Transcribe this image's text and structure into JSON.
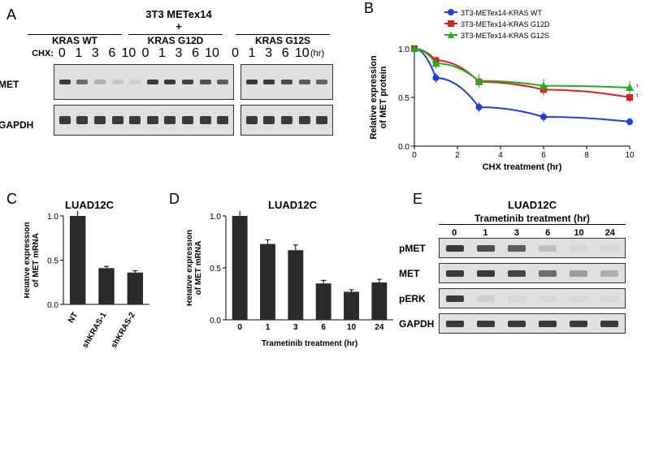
{
  "labels": {
    "A": "A",
    "B": "B",
    "C": "C",
    "D": "D",
    "E": "E",
    "topTitle": "3T3 METex14",
    "plus": "+",
    "krasWT": "KRAS WT",
    "krasG12D": "KRAS G12D",
    "krasG12S": "KRAS G12S",
    "chx": "CHX:",
    "hr": "(hr)",
    "met": "MET",
    "gapdh": "GAPDH",
    "luad": "LUAD12C",
    "tramTitle": "Trametinib treatment (hr)",
    "pmet": "pMET",
    "perk": "pERK"
  },
  "panelA": {
    "times": [
      "0",
      "1",
      "3",
      "6",
      "10"
    ],
    "groups": [
      "KRAS WT",
      "KRAS G12D",
      "KRAS G12S"
    ]
  },
  "panelB": {
    "type": "line",
    "xlabel": "CHX treatment (hr)",
    "ylabel": "Relative expression\nof MET protein",
    "legend": [
      "3T3-METex14-KRAS WT",
      "3T3-METex14-KRAS G12D",
      "3T3-METex14-KRAS G12S"
    ],
    "colors": [
      "#1f3fe0",
      "#e01f1f",
      "#1fb01f"
    ],
    "markers": [
      "circle",
      "square",
      "triangle"
    ],
    "x": [
      0,
      1,
      3,
      6,
      10
    ],
    "series": {
      "wt": [
        1.0,
        0.7,
        0.4,
        0.3,
        0.25
      ],
      "g12d": [
        1.0,
        0.88,
        0.66,
        0.58,
        0.5
      ],
      "g12s": [
        1.0,
        0.85,
        0.67,
        0.62,
        0.6
      ]
    },
    "err": {
      "wt": [
        0,
        0.05,
        0.05,
        0.05,
        0.04
      ],
      "g12d": [
        0,
        0.04,
        0.06,
        0.06,
        0.05
      ],
      "g12s": [
        0,
        0.05,
        0.07,
        0.07,
        0.07
      ]
    },
    "xlim": [
      0,
      10
    ],
    "ylim": [
      0,
      1
    ],
    "xtick_step": 2,
    "ytick_step": 0.5,
    "background_color": "#ffffff",
    "axis_color": "#000000",
    "line_width": 2,
    "marker_size": 5,
    "title_fontsize": 0,
    "label_fontsize": 11
  },
  "panelC": {
    "type": "bar",
    "title": "LUAD12C",
    "ylabel": "Relative expression\nof MET mRNA",
    "categories": [
      "NT",
      "shKRAS-1",
      "shKRAS-2"
    ],
    "values": [
      1.0,
      0.41,
      0.36
    ],
    "err": [
      0.08,
      0.02,
      0.02
    ],
    "bar_color": "#2a2a2a",
    "ylim": [
      0,
      1
    ],
    "ytick_step": 0.5,
    "background_color": "#ffffff",
    "axis_color": "#000000",
    "bar_width": 0.55,
    "label_fontsize": 10
  },
  "panelD": {
    "type": "bar",
    "title": "LUAD12C",
    "xlabel": "Trametinib treatment (hr)",
    "ylabel": "Relative expression\nof MET mRNA",
    "categories": [
      "0",
      "1",
      "3",
      "6",
      "10",
      "24"
    ],
    "values": [
      1.0,
      0.73,
      0.67,
      0.35,
      0.27,
      0.36
    ],
    "err": [
      0.07,
      0.04,
      0.05,
      0.03,
      0.02,
      0.03
    ],
    "bar_color": "#2a2a2a",
    "ylim": [
      0,
      1
    ],
    "ytick_step": 0.5,
    "background_color": "#ffffff",
    "axis_color": "#000000",
    "bar_width": 0.55,
    "label_fontsize": 10
  },
  "panelE": {
    "title": "LUAD12C",
    "subtitle": "Trametinib treatment (hr)",
    "times": [
      "0",
      "1",
      "3",
      "6",
      "10",
      "24"
    ],
    "rows": [
      "pMET",
      "MET",
      "pERK",
      "GAPDH"
    ],
    "intensities": {
      "pMET": [
        1.0,
        0.9,
        0.8,
        0.2,
        0.05,
        0.05
      ],
      "MET": [
        1.0,
        1.0,
        0.95,
        0.7,
        0.4,
        0.3
      ],
      "pERK": [
        1.0,
        0.1,
        0.05,
        0.05,
        0.05,
        0.05
      ],
      "GAPDH": [
        1.0,
        1.0,
        1.0,
        1.0,
        1.0,
        1.0
      ]
    },
    "band_color": "#3a3a3a",
    "box_background": "#e0e0e0"
  }
}
